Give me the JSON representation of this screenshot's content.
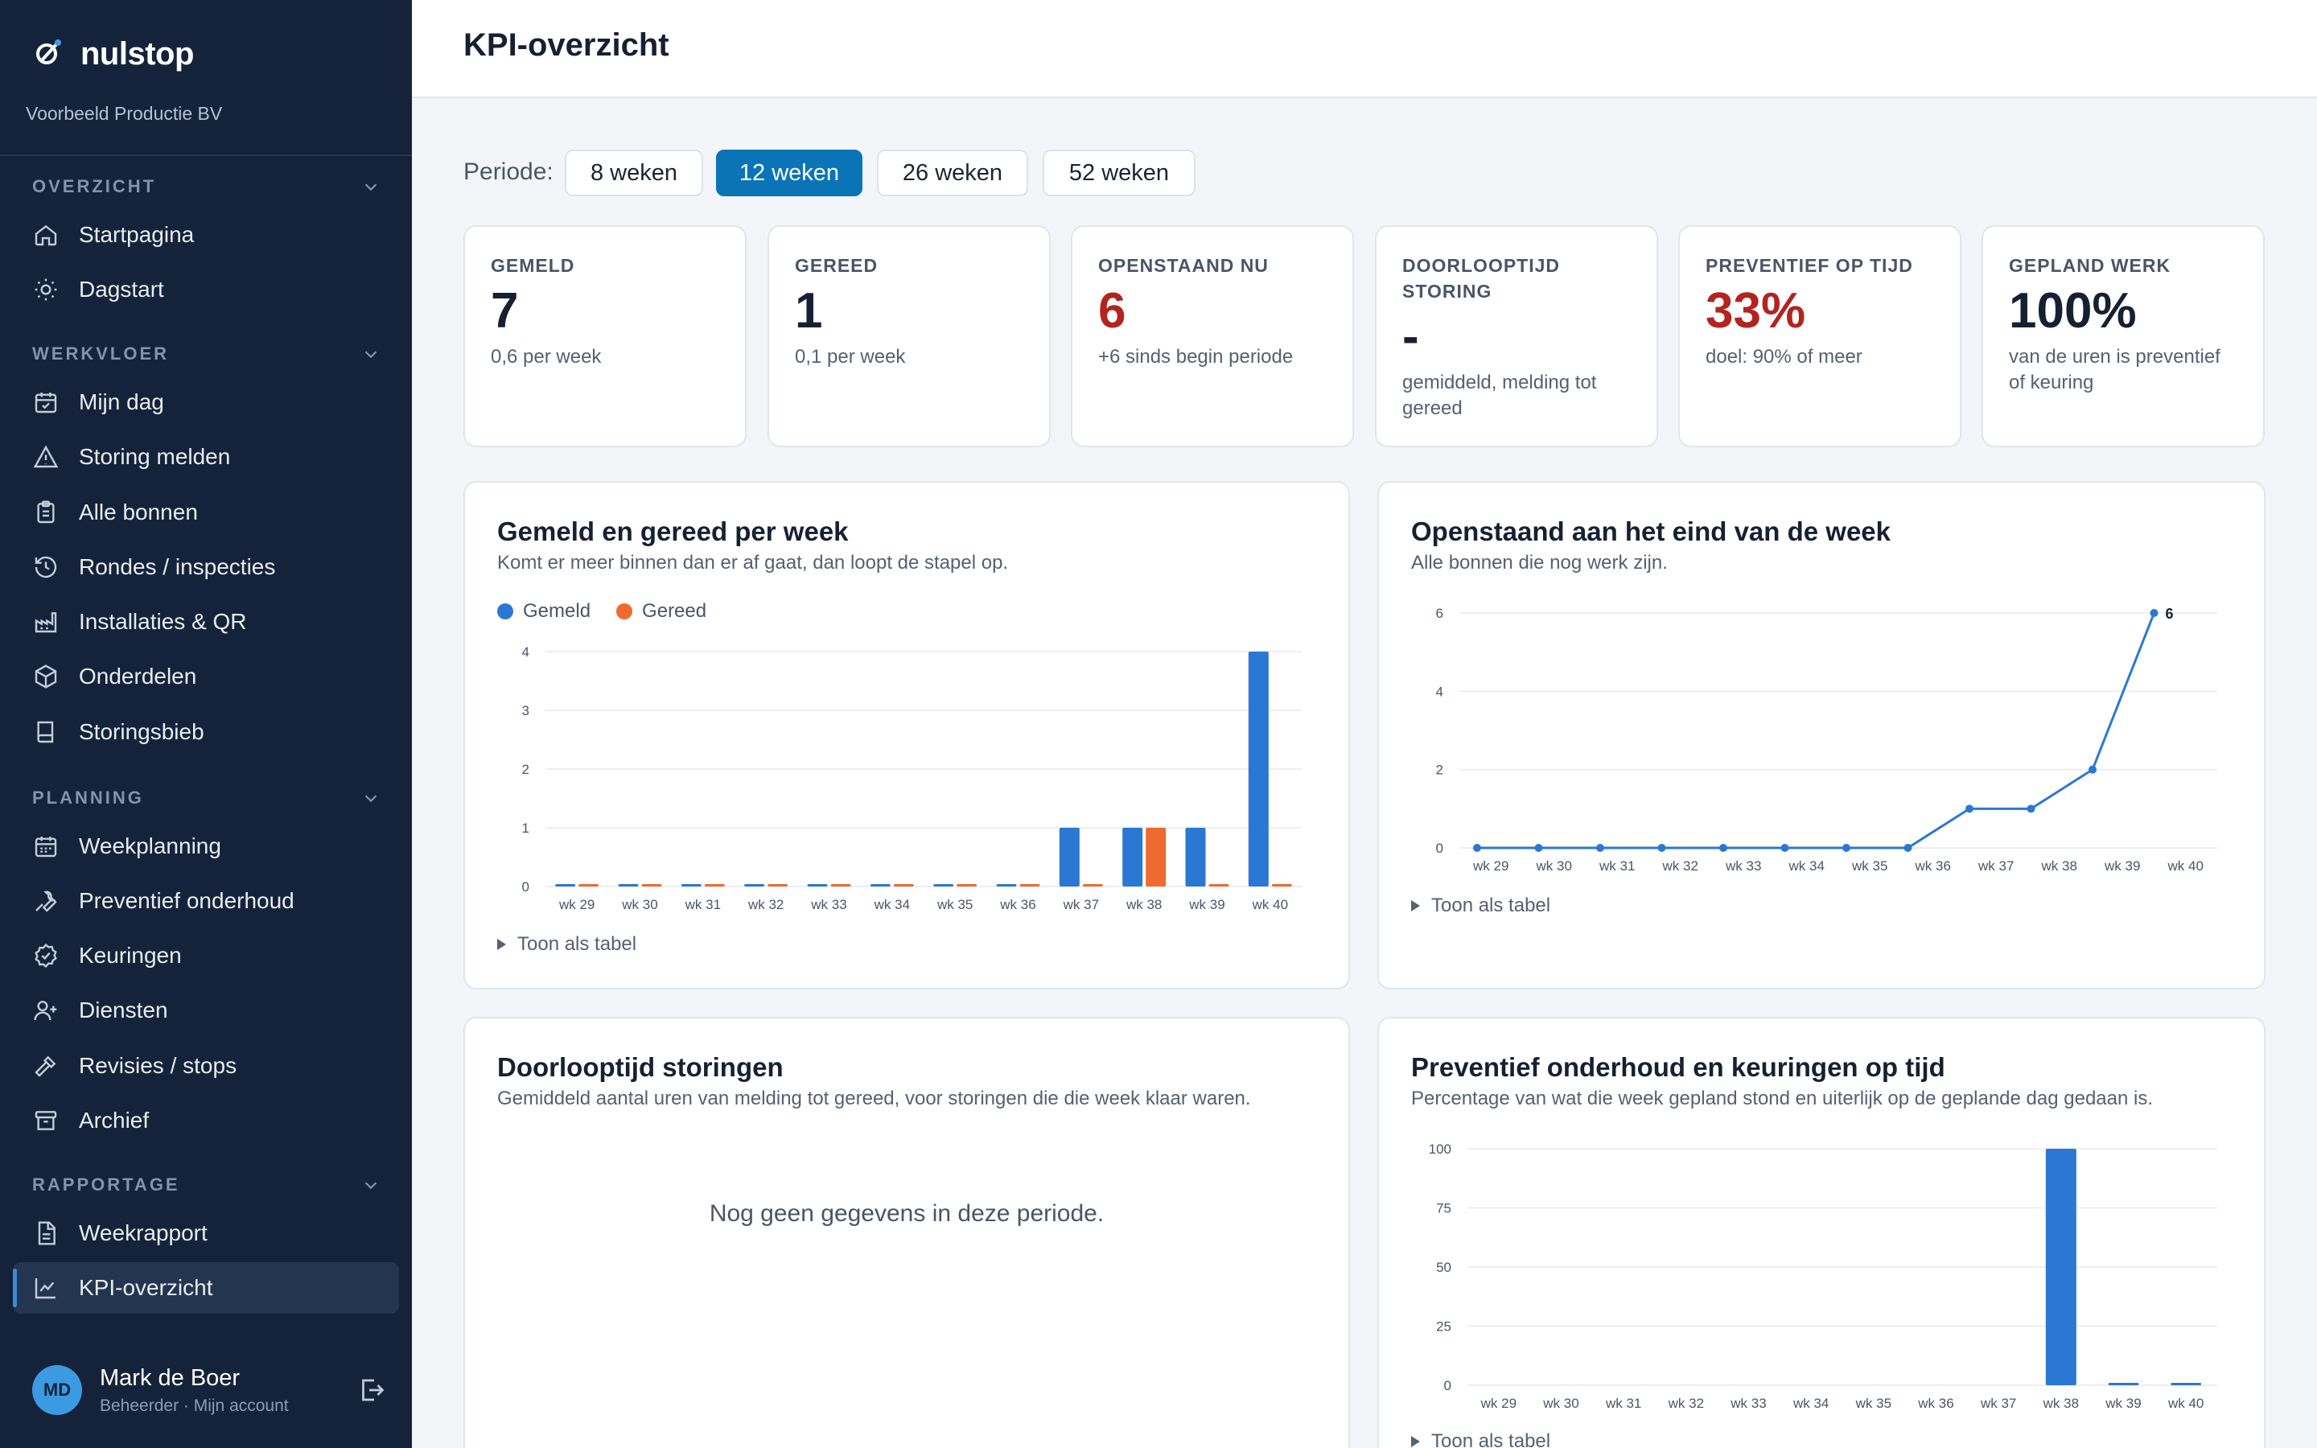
{
  "brand": {
    "name": "nulstop",
    "organization": "Voorbeeld Productie BV"
  },
  "sidebar": {
    "sections": [
      {
        "title": "OVERZICHT",
        "items": [
          {
            "label": "Startpagina",
            "icon": "home-icon"
          },
          {
            "label": "Dagstart",
            "icon": "sun-icon"
          }
        ]
      },
      {
        "title": "WERKVLOER",
        "items": [
          {
            "label": "Mijn dag",
            "icon": "calendar-check-icon"
          },
          {
            "label": "Storing melden",
            "icon": "warning-icon"
          },
          {
            "label": "Alle bonnen",
            "icon": "clipboard-icon"
          },
          {
            "label": "Rondes / inspecties",
            "icon": "history-icon"
          },
          {
            "label": "Installaties & QR",
            "icon": "factory-icon"
          },
          {
            "label": "Onderdelen",
            "icon": "box-icon"
          },
          {
            "label": "Storingsbieb",
            "icon": "book-icon"
          }
        ]
      },
      {
        "title": "PLANNING",
        "items": [
          {
            "label": "Weekplanning",
            "icon": "calendar-icon"
          },
          {
            "label": "Preventief onderhoud",
            "icon": "wrench-icon"
          },
          {
            "label": "Keuringen",
            "icon": "badge-check-icon"
          },
          {
            "label": "Diensten",
            "icon": "user-plus-icon"
          },
          {
            "label": "Revisies / stops",
            "icon": "hammer-icon"
          },
          {
            "label": "Archief",
            "icon": "archive-icon"
          }
        ]
      },
      {
        "title": "RAPPORTAGE",
        "items": [
          {
            "label": "Weekrapport",
            "icon": "file-icon"
          },
          {
            "label": "KPI-overzicht",
            "icon": "chart-line-icon",
            "active": true
          }
        ]
      }
    ]
  },
  "user": {
    "initials": "MD",
    "name": "Mark de Boer",
    "role": "Beheerder · Mijn account"
  },
  "page": {
    "title": "KPI-overzicht"
  },
  "period": {
    "label": "Periode:",
    "options": [
      "8 weken",
      "12 weken",
      "26 weken",
      "52 weken"
    ],
    "selected": "12 weken"
  },
  "kpis": [
    {
      "label": "GEMELD",
      "value": "7",
      "sub": "0,6 per week",
      "color": "#172033"
    },
    {
      "label": "GEREED",
      "value": "1",
      "sub": "0,1 per week",
      "color": "#172033"
    },
    {
      "label": "OPENSTAAND NU",
      "value": "6",
      "sub": "+6 sinds begin periode",
      "color": "#b2241e"
    },
    {
      "label": "DOORLOOPTIJD STORING",
      "value": "-",
      "sub": "gemiddeld, melding tot gereed",
      "color": "#172033"
    },
    {
      "label": "PREVENTIEF OP TIJD",
      "value": "33%",
      "sub": "doel: 90% of meer",
      "color": "#b2241e"
    },
    {
      "label": "GEPLAND WERK",
      "value": "100%",
      "sub": "van de uren is preventief of keuring",
      "color": "#172033"
    }
  ],
  "cards": {
    "gemeld_gereed": {
      "title": "Gemeld en gereed per week",
      "subtitle": "Komt er meer binnen dan er af gaat, dan loopt de stapel op.",
      "toggle": "Toon als tabel"
    },
    "openstaand": {
      "title": "Openstaand aan het eind van de week",
      "subtitle": "Alle bonnen die nog werk zijn.",
      "toggle": "Toon als tabel"
    },
    "doorlooptijd": {
      "title": "Doorlooptijd storingen",
      "subtitle": "Gemiddeld aantal uren van melding tot gereed, voor storingen die die week klaar waren.",
      "empty": "Nog geen gegevens in deze periode."
    },
    "preventief": {
      "title": "Preventief onderhoud en keuringen op tijd",
      "subtitle": "Percentage van wat die week gepland stond en uiterlijk op de geplande dag gedaan is.",
      "toggle": "Toon als tabel"
    }
  },
  "colors": {
    "blue": "#2b78d4",
    "orange": "#ef6a2e",
    "sidebar": "#15233a",
    "accent": "#0b74b7"
  },
  "chart_data": [
    {
      "type": "bar",
      "categories": [
        "wk 29",
        "wk 30",
        "wk 31",
        "wk 32",
        "wk 33",
        "wk 34",
        "wk 35",
        "wk 36",
        "wk 37",
        "wk 38",
        "wk 39",
        "wk 40"
      ],
      "series": [
        {
          "name": "Gemeld",
          "values": [
            0,
            0,
            0,
            0,
            0,
            0,
            0,
            0,
            1,
            1,
            1,
            4
          ],
          "color": "#2b78d4"
        },
        {
          "name": "Gereed",
          "values": [
            0,
            0,
            0,
            0,
            0,
            0,
            0,
            0,
            0,
            1,
            0,
            0
          ],
          "color": "#ef6a2e"
        }
      ],
      "ylim": [
        0,
        4
      ],
      "yticks": [
        0,
        1,
        2,
        3,
        4
      ],
      "grid": true,
      "legend": "top-left"
    },
    {
      "type": "line",
      "categories": [
        "wk 29",
        "wk 30",
        "wk 31",
        "wk 32",
        "wk 33",
        "wk 34",
        "wk 35",
        "wk 36",
        "wk 37",
        "wk 38",
        "wk 39",
        "wk 40"
      ],
      "series": [
        {
          "values": [
            0,
            0,
            0,
            0,
            0,
            0,
            0,
            0,
            1,
            1,
            2,
            6
          ],
          "color": "#2b78d4"
        }
      ],
      "ylim": [
        0,
        6
      ],
      "yticks": [
        0,
        2,
        4,
        6
      ],
      "grid": true,
      "last_point_label": "6"
    },
    {
      "type": "bar",
      "categories": [
        "wk 29",
        "wk 30",
        "wk 31",
        "wk 32",
        "wk 33",
        "wk 34",
        "wk 35",
        "wk 36",
        "wk 37",
        "wk 38",
        "wk 39",
        "wk 40"
      ],
      "series": [
        {
          "values": [
            null,
            null,
            null,
            null,
            null,
            null,
            null,
            null,
            null,
            100,
            0,
            0
          ],
          "color": "#2b78d4"
        }
      ],
      "ylim": [
        0,
        100
      ],
      "yticks": [
        0,
        25,
        50,
        75,
        100
      ],
      "grid": true
    }
  ]
}
